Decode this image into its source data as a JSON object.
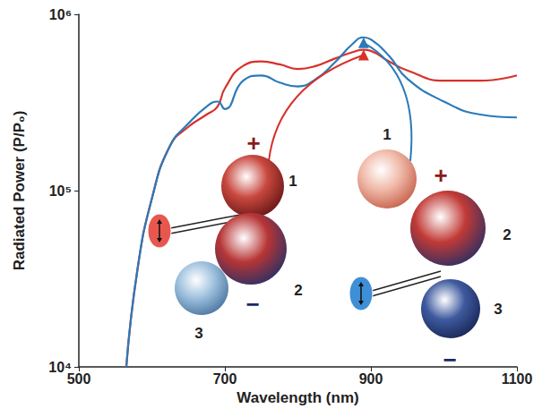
{
  "chart_data": {
    "type": "line",
    "xlabel": "Wavelength (nm)",
    "ylabel": "Radiated Power (P/P₀)",
    "x": [
      565,
      580,
      600,
      625,
      650,
      675,
      690,
      700,
      725,
      750,
      775,
      800,
      825,
      850,
      875,
      890,
      900,
      925,
      950,
      1000,
      1050,
      1100
    ],
    "series": [
      {
        "color": "#d7312a",
        "values": [
          10000,
          35000,
          90000,
          180000,
          230000,
          270000,
          300000,
          380000,
          510000,
          540000,
          520000,
          490000,
          510000,
          560000,
          610000,
          630000,
          620000,
          540000,
          480000,
          420000,
          420000,
          450000
        ]
      },
      {
        "color": "#2a7ab9",
        "values": [
          10000,
          35000,
          90000,
          180000,
          240000,
          300000,
          320000,
          290000,
          420000,
          450000,
          410000,
          390000,
          430000,
          530000,
          680000,
          740000,
          720000,
          580000,
          430000,
          320000,
          270000,
          260000
        ]
      }
    ],
    "xlim": [
      500,
      1100
    ],
    "xticks": [
      500,
      700,
      900,
      1100
    ],
    "ylim": [
      10000,
      1000000
    ],
    "yticks": [
      {
        "value": 10000,
        "label": "10⁴"
      },
      {
        "value": 100000,
        "label": "10⁵"
      },
      {
        "value": 1000000,
        "label": "10⁶"
      }
    ],
    "log": "y",
    "grid": false,
    "annotations": [
      {
        "plus": "+",
        "minus": "−",
        "spheres": [
          "1",
          "2",
          "3"
        ]
      },
      {
        "plus": "+",
        "minus": "−",
        "spheres": [
          "1",
          "2",
          "3"
        ]
      }
    ]
  }
}
